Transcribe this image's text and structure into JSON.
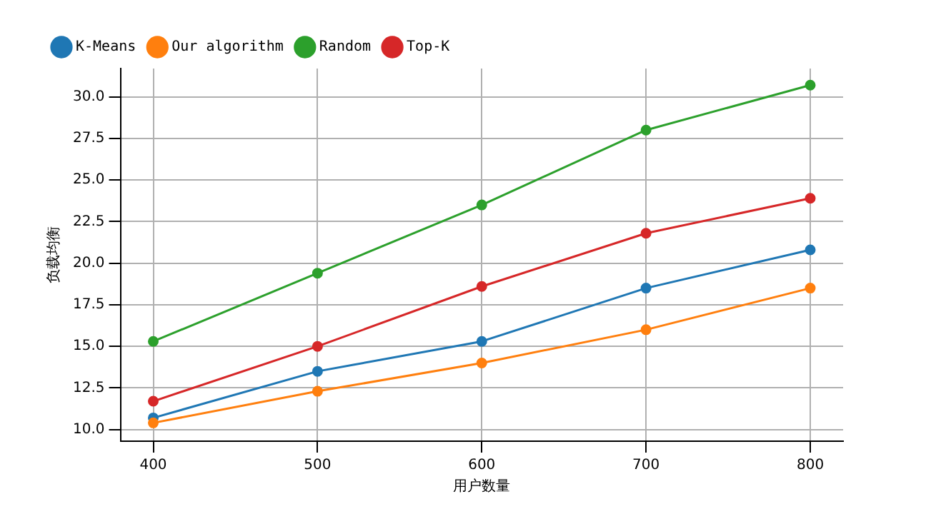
{
  "chart_data": {
    "type": "line",
    "xlabel": "用户数量",
    "ylabel": "负载均衡",
    "x": [
      400,
      500,
      600,
      700,
      800
    ],
    "series": [
      {
        "name": "K-Means",
        "color": "#1f77b4",
        "values": [
          10.7,
          13.5,
          15.3,
          18.5,
          20.8
        ]
      },
      {
        "name": "Our algorithm",
        "color": "#ff7f0e",
        "values": [
          10.4,
          12.3,
          14.0,
          16.0,
          18.5
        ]
      },
      {
        "name": "Random",
        "color": "#2ca02c",
        "values": [
          15.3,
          19.4,
          23.5,
          28.0,
          30.7
        ]
      },
      {
        "name": "Top-K",
        "color": "#d62728",
        "values": [
          11.7,
          15.0,
          18.6,
          21.8,
          23.9
        ]
      }
    ],
    "xlim": [
      380,
      820
    ],
    "xticks": [
      400,
      500,
      600,
      700,
      800
    ],
    "ylim": [
      9.3,
      31.7
    ],
    "yticks": [
      {
        "value": 10,
        "label": "10.0"
      },
      {
        "value": 12.5,
        "label": "12.5"
      },
      {
        "value": 15,
        "label": "15.0"
      },
      {
        "value": 17.5,
        "label": "17.5"
      },
      {
        "value": 20,
        "label": "20.0"
      },
      {
        "value": 22.5,
        "label": "22.5"
      },
      {
        "value": 25,
        "label": "25.0"
      },
      {
        "value": 27.5,
        "label": "27.5"
      },
      {
        "value": 30,
        "label": "30.0"
      }
    ],
    "grid": true,
    "legend": "top left",
    "marker": "circle",
    "line_style": "solid"
  }
}
